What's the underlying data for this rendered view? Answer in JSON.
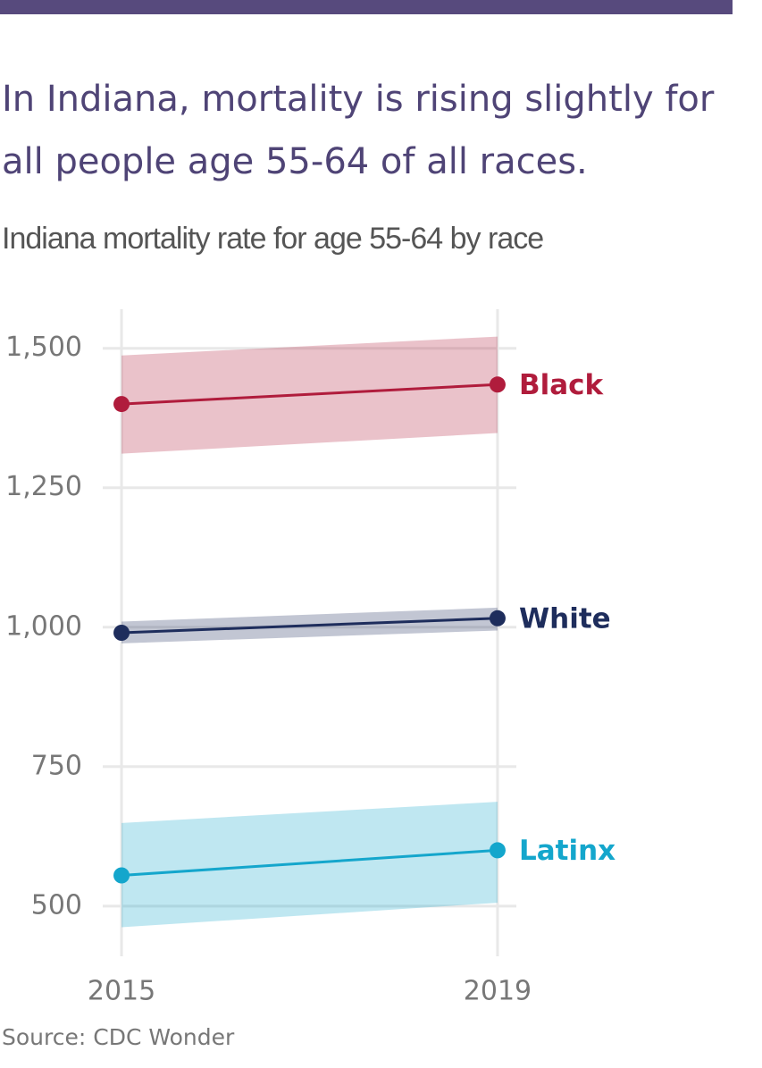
{
  "chart_data": {
    "type": "line",
    "title": "In Indiana, mortality is rising slightly for all people age 55-64 of all races.",
    "subtitle": "Indiana mortality rate for age 55-64 by race",
    "source": "Source: CDC Wonder",
    "x": [
      2015,
      2019
    ],
    "xlim": [
      2014.8,
      2019.2
    ],
    "xticks": [
      2015,
      2019
    ],
    "ylim": [
      410,
      1570
    ],
    "yticks": [
      {
        "value": 1500,
        "label": "1,500"
      },
      {
        "value": 1250,
        "label": "1,250"
      },
      {
        "value": 1000,
        "label": "1,000"
      },
      750,
      500
    ],
    "grid": true,
    "series": [
      {
        "name": "Black",
        "color": "#b01c3c",
        "values": [
          1400,
          1435
        ],
        "lower": [
          1311,
          1348
        ],
        "upper": [
          1487,
          1521
        ]
      },
      {
        "name": "White",
        "color": "#1e2d5c",
        "values": [
          990,
          1016
        ],
        "lower": [
          971,
          994
        ],
        "upper": [
          1010,
          1035
        ]
      },
      {
        "name": "Latinx",
        "color": "#14a6cc",
        "values": [
          555,
          600
        ],
        "lower": [
          462,
          506
        ],
        "upper": [
          649,
          687
        ]
      }
    ]
  }
}
